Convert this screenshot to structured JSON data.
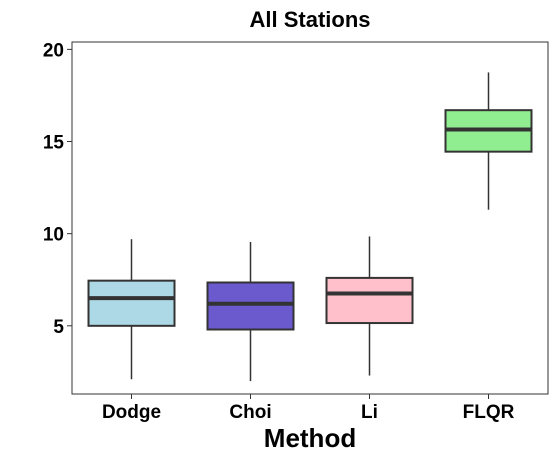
{
  "chart_data": {
    "type": "box",
    "title": "All Stations",
    "xlabel": "Method",
    "ylabel": "",
    "ylim": [
      1.3,
      20.4
    ],
    "yticks": [
      5,
      10,
      15,
      20
    ],
    "grid": false,
    "legend": "none",
    "categories": [
      "Dodge",
      "Choi",
      "Li",
      "FLQR"
    ],
    "boxes": [
      {
        "label": "Dodge",
        "whisker_low": 2.1,
        "q1": 5.0,
        "median": 6.5,
        "q3": 7.45,
        "whisker_high": 9.7,
        "color": "#add8e6"
      },
      {
        "label": "Choi",
        "whisker_low": 2.0,
        "q1": 4.8,
        "median": 6.2,
        "q3": 7.35,
        "whisker_high": 9.55,
        "color": "#6a5acd"
      },
      {
        "label": "Li",
        "whisker_low": 2.3,
        "q1": 5.15,
        "median": 6.75,
        "q3": 7.6,
        "whisker_high": 9.85,
        "color": "#ffc0cb"
      },
      {
        "label": "FLQR",
        "whisker_low": 11.3,
        "q1": 14.45,
        "median": 15.65,
        "q3": 16.7,
        "whisker_high": 18.75,
        "color": "#90ee90"
      }
    ]
  }
}
